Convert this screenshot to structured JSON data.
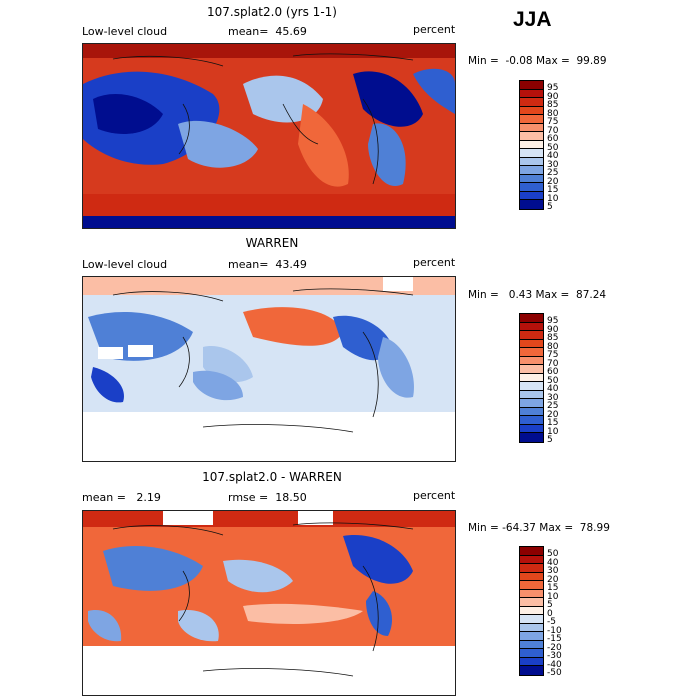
{
  "season": "JJA",
  "panels": [
    {
      "title": "107.splat2.0 (yrs 1-1)",
      "left_label": "Low-level cloud",
      "mid_label": "mean=  45.69",
      "right_label": "percent",
      "minmax": "Min =  -0.08 Max =  99.89",
      "colorbar": {
        "labels": [
          "95",
          "90",
          "85",
          "80",
          "75",
          "70",
          "60",
          "50",
          "40",
          "30",
          "25",
          "20",
          "15",
          "10",
          "5"
        ],
        "colors": [
          "#8b0000",
          "#b5110b",
          "#cf2a12",
          "#e2471c",
          "#f0673a",
          "#f7906c",
          "#fbbea5",
          "#fdf0e6",
          "#d6e4f5",
          "#aac6ec",
          "#7ea5e3",
          "#4f80d6",
          "#2f5fd0",
          "#1a3fc7",
          "#000d8f"
        ]
      }
    },
    {
      "title": "WARREN",
      "left_label": "Low-level cloud",
      "mid_label": "mean=  43.49",
      "right_label": "percent",
      "minmax": "Min =   0.43 Max =  87.24",
      "colorbar": {
        "labels": [
          "95",
          "90",
          "85",
          "80",
          "75",
          "70",
          "60",
          "50",
          "40",
          "30",
          "25",
          "20",
          "15",
          "10",
          "5"
        ],
        "colors": [
          "#8b0000",
          "#b5110b",
          "#cf2a12",
          "#e2471c",
          "#f0673a",
          "#f7906c",
          "#fbbea5",
          "#fdf0e6",
          "#d6e4f5",
          "#aac6ec",
          "#7ea5e3",
          "#4f80d6",
          "#2f5fd0",
          "#1a3fc7",
          "#000d8f"
        ]
      }
    },
    {
      "title": "107.splat2.0 - WARREN",
      "left_label": "mean =   2.19",
      "mid_label": "rmse =  18.50",
      "right_label": "percent",
      "minmax": "Min = -64.37 Max =  78.99",
      "colorbar": {
        "labels": [
          "50",
          "40",
          "30",
          "20",
          "15",
          "10",
          "5",
          "0",
          "-5",
          "-10",
          "-15",
          "-20",
          "-30",
          "-40",
          "-50"
        ],
        "colors": [
          "#8b0000",
          "#b5110b",
          "#cf2a12",
          "#e2471c",
          "#f0673a",
          "#f7906c",
          "#fbbea5",
          "#fdf0e6",
          "#d6e4f5",
          "#aac6ec",
          "#7ea5e3",
          "#4f80d6",
          "#2f5fd0",
          "#1a3fc7",
          "#000d8f"
        ]
      }
    }
  ]
}
